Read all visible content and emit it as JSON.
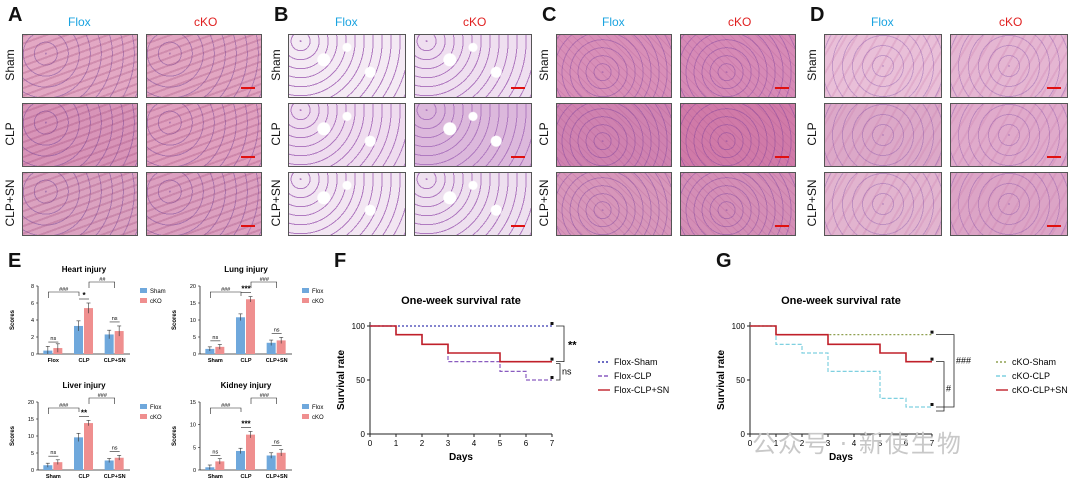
{
  "colors": {
    "flox_title": "#1aa3e0",
    "cko_title": "#e02020",
    "flox_bar": "#6fa8dc",
    "cko_bar": "#ef8f8f",
    "survival_sham": "#3b3bb0",
    "survival_clp": "#8a5cc0",
    "survival_sn": "#c0202a"
  },
  "panels": {
    "A": {
      "label": "A",
      "col1": "Flox",
      "col2": "cKO",
      "rows": [
        "Sham",
        "CLP",
        "CLP+SN"
      ],
      "tissue": "heart"
    },
    "B": {
      "label": "B",
      "col1": "Flox",
      "col2": "cKO",
      "rows": [
        "Sham",
        "CLP",
        "CLP+SN"
      ],
      "tissue": "lung"
    },
    "C": {
      "label": "C",
      "col1": "Flox",
      "col2": "cKO",
      "rows": [
        "Sham",
        "CLP",
        "CLP+SN"
      ],
      "tissue": "liver"
    },
    "D": {
      "label": "D",
      "col1": "Flox",
      "col2": "cKO",
      "rows": [
        "Sham",
        "CLP",
        "CLP+SN"
      ],
      "tissue": "kidney"
    },
    "E": {
      "label": "E"
    },
    "F": {
      "label": "F"
    },
    "G": {
      "label": "G"
    }
  },
  "chart_data": [
    {
      "type": "bar",
      "title": "Heart injury",
      "ylabel": "Scores",
      "ylim": [
        0,
        8
      ],
      "yticks": [
        0,
        2,
        4,
        6,
        8
      ],
      "categories": [
        "Flox",
        "CLP",
        "CLP+SN"
      ],
      "series": [
        {
          "name": "Sham",
          "values": [
            0.4,
            3.3,
            2.3
          ],
          "errors": [
            0.5,
            0.6,
            0.5
          ]
        },
        {
          "name": "cKO",
          "values": [
            0.7,
            5.4,
            2.7
          ],
          "errors": [
            0.5,
            0.6,
            0.6
          ]
        }
      ],
      "annotations": [
        "ns",
        "*",
        "###",
        "##",
        "ns"
      ]
    },
    {
      "type": "bar",
      "title": "Lung injury",
      "ylabel": "Scores",
      "ylim": [
        0,
        20
      ],
      "yticks": [
        0,
        5,
        10,
        15,
        20
      ],
      "categories": [
        "Sham",
        "CLP",
        "CLP+SN"
      ],
      "series": [
        {
          "name": "Flox",
          "values": [
            1.5,
            10.8,
            3.3
          ],
          "errors": [
            0.6,
            1.0,
            0.8
          ]
        },
        {
          "name": "cKO",
          "values": [
            2.1,
            16.1,
            4.0
          ],
          "errors": [
            0.7,
            0.8,
            0.9
          ]
        }
      ],
      "annotations": [
        "ns",
        "***",
        "###",
        "###",
        "ns"
      ]
    },
    {
      "type": "bar",
      "title": "Liver injury",
      "ylabel": "Scores",
      "ylim": [
        0,
        20
      ],
      "yticks": [
        0,
        5,
        10,
        15,
        20
      ],
      "categories": [
        "Sham",
        "CLP",
        "CLP+SN"
      ],
      "series": [
        {
          "name": "Flox",
          "values": [
            1.4,
            9.6,
            2.8
          ],
          "errors": [
            0.6,
            1.2,
            0.6
          ]
        },
        {
          "name": "cKO",
          "values": [
            2.3,
            13.8,
            3.6
          ],
          "errors": [
            0.7,
            0.8,
            0.7
          ]
        }
      ],
      "annotations": [
        "ns",
        "**",
        "###",
        "###",
        "ns"
      ]
    },
    {
      "type": "bar",
      "title": "Kidney injury",
      "ylabel": "Scores",
      "ylim": [
        0,
        15
      ],
      "yticks": [
        0,
        5,
        10,
        15
      ],
      "categories": [
        "Sham",
        "CLP",
        "CLP+SN"
      ],
      "series": [
        {
          "name": "Flox",
          "values": [
            0.6,
            4.2,
            3.2
          ],
          "errors": [
            0.5,
            0.6,
            0.6
          ]
        },
        {
          "name": "cKO",
          "values": [
            1.9,
            7.8,
            3.8
          ],
          "errors": [
            0.6,
            0.7,
            0.7
          ]
        }
      ],
      "annotations": [
        "ns",
        "***",
        "###",
        "###",
        "ns"
      ]
    },
    {
      "type": "line",
      "step": true,
      "title": "One-week survival rate",
      "xlabel": "Days",
      "ylabel": "Survival rate",
      "xlim": [
        0,
        7
      ],
      "ylim": [
        0,
        100
      ],
      "xticks": [
        0,
        1,
        2,
        3,
        4,
        5,
        6,
        7
      ],
      "yticks": [
        0,
        50,
        100
      ],
      "series": [
        {
          "name": "Flox-Sham",
          "x": [
            0,
            7
          ],
          "y": [
            100,
            100
          ]
        },
        {
          "name": "Flox-CLP",
          "x": [
            0,
            1,
            2,
            3,
            5,
            6,
            7
          ],
          "y": [
            100,
            92,
            83,
            67,
            58,
            50,
            50
          ]
        },
        {
          "name": "Flox-CLP+SN",
          "x": [
            0,
            1,
            2,
            3,
            5,
            7
          ],
          "y": [
            100,
            92,
            83,
            75,
            67,
            67
          ]
        }
      ],
      "annotations": [
        "**",
        "ns"
      ]
    },
    {
      "type": "line",
      "step": true,
      "title": "One-week survival rate",
      "xlabel": "Days",
      "ylabel": "Survival rate",
      "xlim": [
        0,
        7
      ],
      "ylim": [
        0,
        100
      ],
      "xticks": [
        0,
        1,
        2,
        3,
        4,
        5,
        6,
        7
      ],
      "yticks": [
        0,
        50,
        100
      ],
      "series": [
        {
          "name": "cKO-Sham",
          "x": [
            0,
            1,
            7
          ],
          "y": [
            100,
            92,
            92
          ]
        },
        {
          "name": "cKO-CLP",
          "x": [
            0,
            1,
            2,
            3,
            5,
            6,
            7
          ],
          "y": [
            100,
            83,
            75,
            58,
            33,
            25,
            25
          ]
        },
        {
          "name": "cKO-CLP+SN",
          "x": [
            0,
            1,
            3,
            5,
            6,
            7
          ],
          "y": [
            100,
            92,
            83,
            75,
            67,
            67
          ]
        }
      ],
      "annotations": [
        "###",
        "#"
      ]
    }
  ],
  "watermark": "公众号 · 新使生物"
}
